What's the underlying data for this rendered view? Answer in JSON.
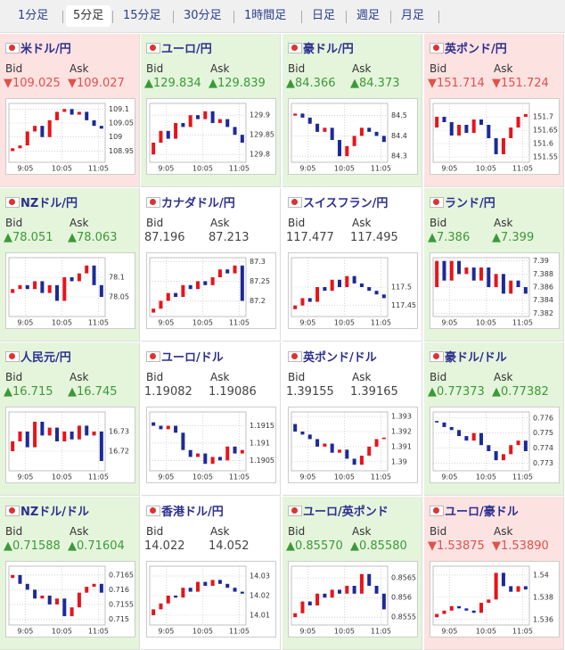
{
  "tabs": {
    "items": [
      "1分足",
      "5分足",
      "15分足",
      "30分足",
      "1時間足",
      "日足",
      "週足",
      "月足"
    ],
    "selected": 1
  },
  "tiles": [
    {
      "name": "米ドル/円",
      "bid_label": "Bid",
      "ask_label": "Ask",
      "bid": "▼109.025",
      "ask": "▼109.027",
      "background": "#fde2e2",
      "value_color": "#e0524a",
      "chart": {
        "ylim": [
          108.91,
          109.12
        ],
        "yticks": [
          109.1,
          109.05,
          109,
          108.95
        ],
        "xticks": [
          "9:05",
          "10:05",
          "11:05"
        ],
        "values": [
          108.95,
          108.96,
          108.97,
          109.02,
          109.04,
          109.0,
          109.06,
          109.09,
          109.1,
          109.08,
          109.09,
          109.06,
          109.04,
          109.03
        ]
      }
    },
    {
      "name": "ユーロ/円",
      "bid_label": "Bid",
      "ask_label": "Ask",
      "bid": "▲129.834",
      "ask": "▲129.839",
      "background": "#e5f5dc",
      "value_color": "#3b9a37",
      "chart": {
        "ylim": [
          129.78,
          129.93
        ],
        "yticks": [
          129.9,
          129.85,
          129.8
        ],
        "xticks": [
          "9:05",
          "10:05",
          "11:05"
        ],
        "values": [
          129.8,
          129.83,
          129.86,
          129.84,
          129.88,
          129.87,
          129.9,
          129.89,
          129.91,
          129.88,
          129.89,
          129.87,
          129.85,
          129.83
        ]
      }
    },
    {
      "name": "豪ドル/円",
      "bid_label": "Bid",
      "ask_label": "Ask",
      "bid": "▲84.366",
      "ask": "▲84.373",
      "background": "#e5f5dc",
      "value_color": "#3b9a37",
      "chart": {
        "ylim": [
          84.27,
          84.56
        ],
        "yticks": [
          84.5,
          84.4,
          84.3
        ],
        "xticks": [
          "9:05",
          "10:05",
          "11:05"
        ],
        "values": [
          84.5,
          84.51,
          84.49,
          84.46,
          84.42,
          84.44,
          84.38,
          84.3,
          84.35,
          84.4,
          84.44,
          84.42,
          84.4,
          84.37
        ]
      }
    },
    {
      "name": "英ポンド/円",
      "bid_label": "Bid",
      "ask_label": "Ask",
      "bid": "▼151.714",
      "ask": "▼151.724",
      "background": "#fde2e2",
      "value_color": "#e0524a",
      "chart": {
        "ylim": [
          151.53,
          151.75
        ],
        "yticks": [
          151.7,
          151.65,
          151.6,
          151.55
        ],
        "xticks": [
          "9:05",
          "10:05",
          "11:05"
        ],
        "values": [
          151.66,
          151.7,
          151.68,
          151.63,
          151.67,
          151.64,
          151.69,
          151.67,
          151.62,
          151.56,
          151.62,
          151.66,
          151.7,
          151.71
        ]
      }
    },
    {
      "name": "NZドル/円",
      "bid_label": "Bid",
      "ask_label": "Ask",
      "bid": "▲78.051",
      "ask": "▲78.063",
      "background": "#e5f5dc",
      "value_color": "#3b9a37",
      "chart": {
        "ylim": [
          78.0,
          78.15
        ],
        "yticks": [
          78.1,
          78.05
        ],
        "xticks": [
          "9:05",
          "10:05",
          "11:05"
        ],
        "values": [
          78.06,
          78.07,
          78.08,
          78.07,
          78.09,
          78.06,
          78.08,
          78.04,
          78.1,
          78.09,
          78.11,
          78.13,
          78.08,
          78.05
        ]
      }
    },
    {
      "name": "カナダドル/円",
      "bid_label": "Bid",
      "ask_label": "Ask",
      "bid": "87.196",
      "ask": "87.213",
      "background": "#ffffff",
      "value_color": "#444444",
      "chart": {
        "ylim": [
          87.16,
          87.31
        ],
        "yticks": [
          87.3,
          87.25,
          87.2
        ],
        "xticks": [
          "9:05",
          "10:05",
          "11:05"
        ],
        "values": [
          87.17,
          87.18,
          87.2,
          87.22,
          87.21,
          87.24,
          87.23,
          87.25,
          87.24,
          87.26,
          87.28,
          87.27,
          87.29,
          87.2
        ]
      }
    },
    {
      "name": "スイスフラン/円",
      "bid_label": "Bid",
      "ask_label": "Ask",
      "bid": "117.477",
      "ask": "117.495",
      "background": "#ffffff",
      "value_color": "#444444",
      "chart": {
        "ylim": [
          117.42,
          117.58
        ],
        "yticks": [
          117.5,
          117.45
        ],
        "xticks": [
          "9:05",
          "10:05",
          "11:05"
        ],
        "values": [
          117.44,
          117.45,
          117.47,
          117.46,
          117.5,
          117.49,
          117.52,
          117.5,
          117.53,
          117.51,
          117.5,
          117.49,
          117.48,
          117.47
        ]
      }
    },
    {
      "name": "ランド/円",
      "bid_label": "Bid",
      "ask_label": "Ask",
      "bid": "▲7.386",
      "ask": "▲7.399",
      "background": "#e5f5dc",
      "value_color": "#3b9a37",
      "chart": {
        "ylim": [
          7.3815,
          7.3905
        ],
        "yticks": [
          7.39,
          7.388,
          7.386,
          7.384,
          7.382
        ],
        "xticks": [
          "9:05",
          "10:05",
          "11:05"
        ],
        "values": [
          7.386,
          7.39,
          7.387,
          7.39,
          7.388,
          7.389,
          7.387,
          7.389,
          7.386,
          7.388,
          7.385,
          7.387,
          7.386,
          7.385
        ]
      }
    },
    {
      "name": "人民元/円",
      "bid_label": "Bid",
      "ask_label": "Ask",
      "bid": "▲16.715",
      "ask": "▲16.745",
      "background": "#e5f5dc",
      "value_color": "#3b9a37",
      "chart": {
        "ylim": [
          16.71,
          16.74
        ],
        "yticks": [
          16.73,
          16.72
        ],
        "xticks": [
          "9:05",
          "10:05",
          "11:05"
        ],
        "values": [
          16.72,
          16.725,
          16.73,
          16.722,
          16.735,
          16.728,
          16.732,
          16.725,
          16.73,
          16.726,
          16.733,
          16.728,
          16.73,
          16.715
        ]
      }
    },
    {
      "name": "ユーロ/ドル",
      "bid_label": "Bid",
      "ask_label": "Ask",
      "bid": "1.19082",
      "ask": "1.19086",
      "background": "#ffffff",
      "value_color": "#444444",
      "chart": {
        "ylim": [
          1.1902,
          1.1919
        ],
        "yticks": [
          1.1915,
          1.191,
          1.1905
        ],
        "xticks": [
          "9:05",
          "10:05",
          "11:05"
        ],
        "values": [
          1.1916,
          1.1915,
          1.1914,
          1.1915,
          1.1913,
          1.1908,
          1.1906,
          1.1907,
          1.1904,
          1.1906,
          1.1905,
          1.1909,
          1.1907,
          1.1908
        ]
      }
    },
    {
      "name": "英ポンド/ドル",
      "bid_label": "Bid",
      "ask_label": "Ask",
      "bid": "1.39155",
      "ask": "1.39165",
      "background": "#ffffff",
      "value_color": "#444444",
      "chart": {
        "ylim": [
          1.3894,
          1.3933
        ],
        "yticks": [
          1.393,
          1.392,
          1.391,
          1.39
        ],
        "xticks": [
          "9:05",
          "10:05",
          "11:05"
        ],
        "values": [
          1.3925,
          1.392,
          1.3918,
          1.3915,
          1.391,
          1.3912,
          1.3906,
          1.3908,
          1.3902,
          1.3898,
          1.3904,
          1.391,
          1.3915,
          1.3916
        ]
      }
    },
    {
      "name": "豪ドル/ドル",
      "bid_label": "Bid",
      "ask_label": "Ask",
      "bid": "▲0.77373",
      "ask": "▲0.77382",
      "background": "#e5f5dc",
      "value_color": "#3b9a37",
      "chart": {
        "ylim": [
          0.7725,
          0.7764
        ],
        "yticks": [
          0.776,
          0.775,
          0.774,
          0.773
        ],
        "xticks": [
          "9:05",
          "10:05",
          "11:05"
        ],
        "values": [
          0.7758,
          0.7757,
          0.7754,
          0.7752,
          0.7748,
          0.7745,
          0.775,
          0.7742,
          0.7738,
          0.7732,
          0.7736,
          0.7742,
          0.7745,
          0.7738
        ]
      }
    },
    {
      "name": "NZドル/ドル",
      "bid_label": "Bid",
      "ask_label": "Ask",
      "bid": "▲0.71588",
      "ask": "▲0.71604",
      "background": "#e5f5dc",
      "value_color": "#3b9a37",
      "chart": {
        "ylim": [
          0.7148,
          0.7168
        ],
        "yticks": [
          0.7165,
          0.716,
          0.7155,
          0.715
        ],
        "xticks": [
          "9:05",
          "10:05",
          "11:05"
        ],
        "values": [
          0.7164,
          0.7165,
          0.7162,
          0.716,
          0.7157,
          0.7158,
          0.7155,
          0.7157,
          0.7151,
          0.7154,
          0.7159,
          0.7161,
          0.7162,
          0.7159
        ]
      }
    },
    {
      "name": "香港ドル/円",
      "bid_label": "Bid",
      "ask_label": "Ask",
      "bid": "14.022",
      "ask": "14.052",
      "background": "#ffffff",
      "value_color": "#444444",
      "chart": {
        "ylim": [
          14.005,
          14.035
        ],
        "yticks": [
          14.03,
          14.02,
          14.01
        ],
        "xticks": [
          "9:05",
          "10:05",
          "11:05"
        ],
        "values": [
          14.01,
          14.013,
          14.016,
          14.02,
          14.019,
          14.024,
          14.022,
          14.027,
          14.025,
          14.028,
          14.026,
          14.024,
          14.022,
          14.021
        ]
      }
    },
    {
      "name": "ユーロ/英ポンド",
      "bid_label": "Bid",
      "ask_label": "Ask",
      "bid": "▲0.85570",
      "ask": "▲0.85580",
      "background": "#e5f5dc",
      "value_color": "#3b9a37",
      "chart": {
        "ylim": [
          0.8553,
          0.8568
        ],
        "yticks": [
          0.8565,
          0.856,
          0.8555
        ],
        "xticks": [
          "9:05",
          "10:05",
          "11:05"
        ],
        "values": [
          0.8555,
          0.8556,
          0.8559,
          0.8558,
          0.8561,
          0.856,
          0.8562,
          0.8561,
          0.8563,
          0.8561,
          0.8566,
          0.8563,
          0.8561,
          0.8557
        ]
      }
    },
    {
      "name": "ユーロ/豪ドル",
      "bid_label": "Bid",
      "ask_label": "Ask",
      "bid": "▼1.53875",
      "ask": "▼1.53890",
      "background": "#fde2e2",
      "value_color": "#e0524a",
      "chart": {
        "ylim": [
          1.5355,
          1.5408
        ],
        "yticks": [
          1.54,
          1.538,
          1.536
        ],
        "xticks": [
          "9:05",
          "10:05",
          "11:05"
        ],
        "values": [
          1.5362,
          1.5365,
          1.5368,
          1.5372,
          1.537,
          1.5368,
          1.5366,
          1.5375,
          1.5378,
          1.5402,
          1.539,
          1.5385,
          1.539,
          1.5387
        ]
      }
    }
  ]
}
